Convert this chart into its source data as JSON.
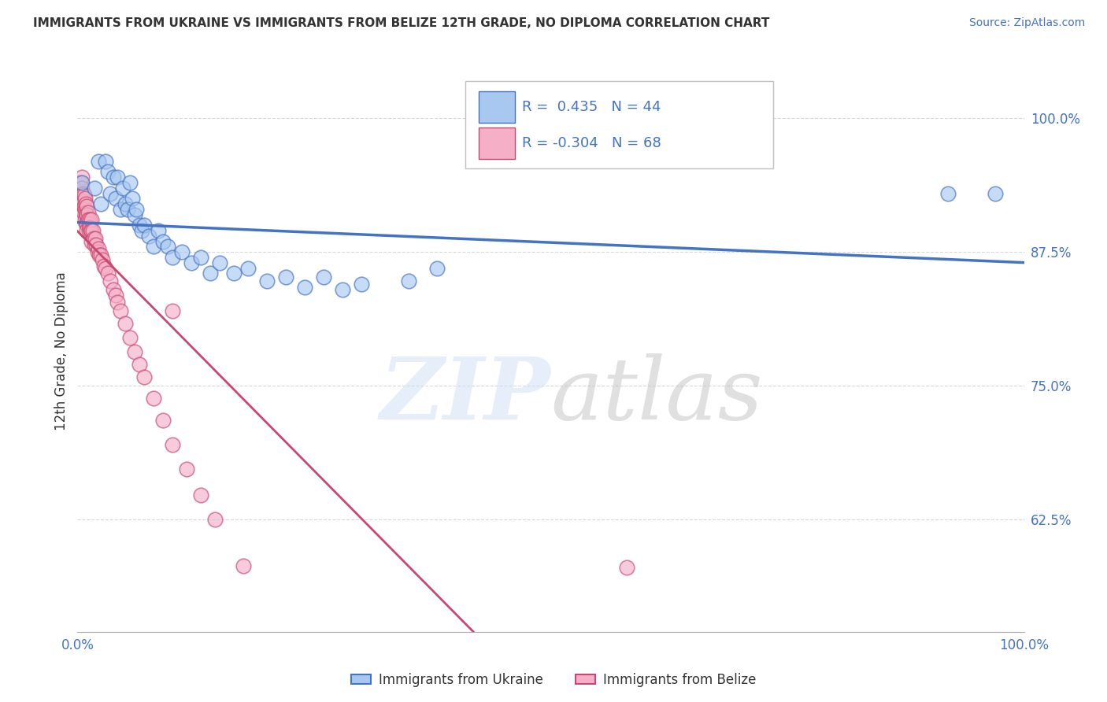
{
  "title": "IMMIGRANTS FROM UKRAINE VS IMMIGRANTS FROM BELIZE 12TH GRADE, NO DIPLOMA CORRELATION CHART",
  "source": "Source: ZipAtlas.com",
  "ylabel": "12th Grade, No Diploma",
  "xlim": [
    0.0,
    1.0
  ],
  "ylim": [
    0.52,
    1.045
  ],
  "ukraine_R": 0.435,
  "ukraine_N": 44,
  "belize_R": -0.304,
  "belize_N": 68,
  "ukraine_color": "#a8c8f0",
  "belize_color": "#f5b0c8",
  "ukraine_edge_color": "#4472c4",
  "belize_edge_color": "#c84870",
  "ukraine_line_color": "#4472c4",
  "belize_line_color": "#c84870",
  "legend_label_ukraine": "Immigrants from Ukraine",
  "legend_label_belize": "Immigrants from Belize",
  "ytick_positions": [
    0.625,
    0.75,
    0.875,
    1.0
  ],
  "ytick_labels": [
    "62.5%",
    "75.0%",
    "87.5%",
    "100.0%"
  ],
  "background": "#ffffff",
  "grid_color": "#d8d8d8",
  "text_color": "#333333",
  "axis_label_color": "#4472c4",
  "ukraine_x": [
    0.005,
    0.018,
    0.022,
    0.025,
    0.03,
    0.032,
    0.035,
    0.038,
    0.04,
    0.042,
    0.045,
    0.048,
    0.05,
    0.053,
    0.055,
    0.058,
    0.06,
    0.062,
    0.065,
    0.068,
    0.07,
    0.075,
    0.08,
    0.085,
    0.09,
    0.095,
    0.1,
    0.11,
    0.12,
    0.13,
    0.14,
    0.15,
    0.165,
    0.18,
    0.2,
    0.22,
    0.24,
    0.26,
    0.28,
    0.3,
    0.35,
    0.38,
    0.92,
    0.97
  ],
  "ukraine_y": [
    0.94,
    0.935,
    0.96,
    0.92,
    0.96,
    0.95,
    0.93,
    0.945,
    0.925,
    0.945,
    0.915,
    0.935,
    0.92,
    0.915,
    0.94,
    0.925,
    0.91,
    0.915,
    0.9,
    0.895,
    0.9,
    0.89,
    0.88,
    0.895,
    0.885,
    0.88,
    0.87,
    0.875,
    0.865,
    0.87,
    0.855,
    0.865,
    0.855,
    0.86,
    0.848,
    0.852,
    0.842,
    0.852,
    0.84,
    0.845,
    0.848,
    0.86,
    0.93,
    0.93
  ],
  "belize_x": [
    0.002,
    0.003,
    0.003,
    0.004,
    0.004,
    0.004,
    0.005,
    0.005,
    0.005,
    0.005,
    0.005,
    0.006,
    0.006,
    0.006,
    0.007,
    0.007,
    0.008,
    0.008,
    0.008,
    0.009,
    0.009,
    0.009,
    0.01,
    0.01,
    0.01,
    0.01,
    0.011,
    0.011,
    0.012,
    0.012,
    0.013,
    0.013,
    0.014,
    0.015,
    0.015,
    0.015,
    0.016,
    0.017,
    0.018,
    0.019,
    0.02,
    0.021,
    0.022,
    0.023,
    0.025,
    0.026,
    0.028,
    0.03,
    0.032,
    0.035,
    0.038,
    0.04,
    0.042,
    0.045,
    0.05,
    0.055,
    0.06,
    0.065,
    0.07,
    0.08,
    0.09,
    0.1,
    0.115,
    0.13,
    0.145,
    0.175,
    0.1,
    0.58
  ],
  "belize_y": [
    0.94,
    0.935,
    0.925,
    0.94,
    0.93,
    0.92,
    0.945,
    0.935,
    0.928,
    0.92,
    0.915,
    0.93,
    0.922,
    0.912,
    0.928,
    0.918,
    0.925,
    0.915,
    0.905,
    0.92,
    0.912,
    0.902,
    0.918,
    0.91,
    0.902,
    0.895,
    0.912,
    0.905,
    0.902,
    0.895,
    0.905,
    0.898,
    0.895,
    0.905,
    0.895,
    0.885,
    0.895,
    0.888,
    0.882,
    0.888,
    0.882,
    0.875,
    0.878,
    0.872,
    0.872,
    0.868,
    0.862,
    0.86,
    0.855,
    0.848,
    0.84,
    0.835,
    0.828,
    0.82,
    0.808,
    0.795,
    0.782,
    0.77,
    0.758,
    0.738,
    0.718,
    0.695,
    0.672,
    0.648,
    0.625,
    0.582,
    0.82,
    0.58
  ]
}
